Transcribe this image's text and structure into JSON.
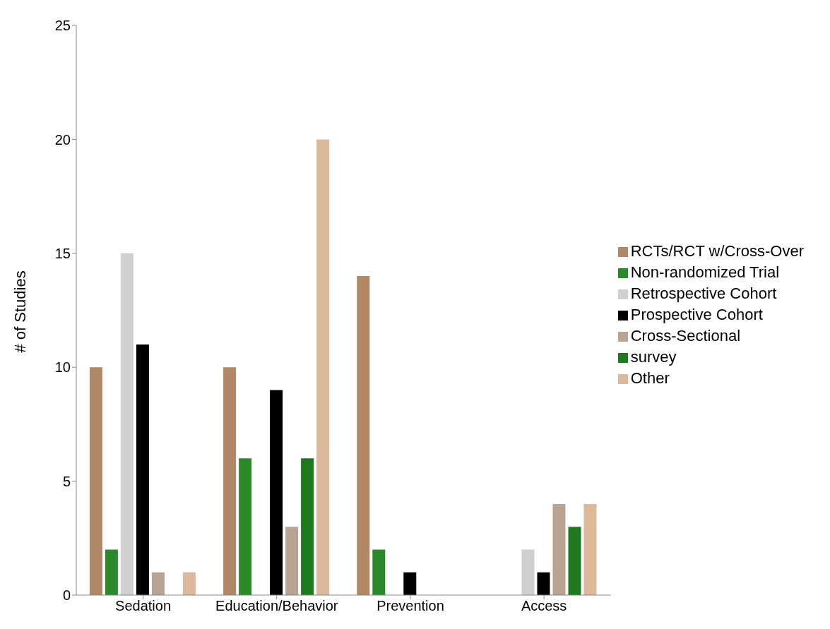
{
  "chart_data": {
    "type": "bar",
    "ylabel": "# of Studies",
    "categories": [
      "Sedation",
      "Education/Behavior",
      "Prevention",
      "Access"
    ],
    "series": [
      {
        "name": "RCTs/RCT w/Cross-Over",
        "color": "#b08866",
        "values": [
          10,
          10,
          14,
          0
        ]
      },
      {
        "name": "Non-randomized Trial",
        "color": "#2a8a2a",
        "values": [
          2,
          6,
          2,
          0
        ]
      },
      {
        "name": "Retrospective Cohort",
        "color": "#d0d0d0",
        "values": [
          15,
          0,
          0,
          2
        ]
      },
      {
        "name": "Prospective Cohort",
        "color": "#000000",
        "values": [
          11,
          9,
          1,
          1
        ]
      },
      {
        "name": "Cross-Sectional",
        "color": "#b9a392",
        "values": [
          1,
          3,
          0,
          4
        ]
      },
      {
        "name": "survey",
        "color": "#1e7a1e",
        "values": [
          0,
          6,
          0,
          3
        ]
      },
      {
        "name": "Other",
        "color": "#ddb99c",
        "values": [
          1,
          20,
          0,
          4
        ]
      }
    ],
    "ylim": [
      0,
      25
    ],
    "yticks": [
      0,
      5,
      10,
      15,
      20,
      25
    ],
    "grid": false,
    "legend": "right"
  }
}
